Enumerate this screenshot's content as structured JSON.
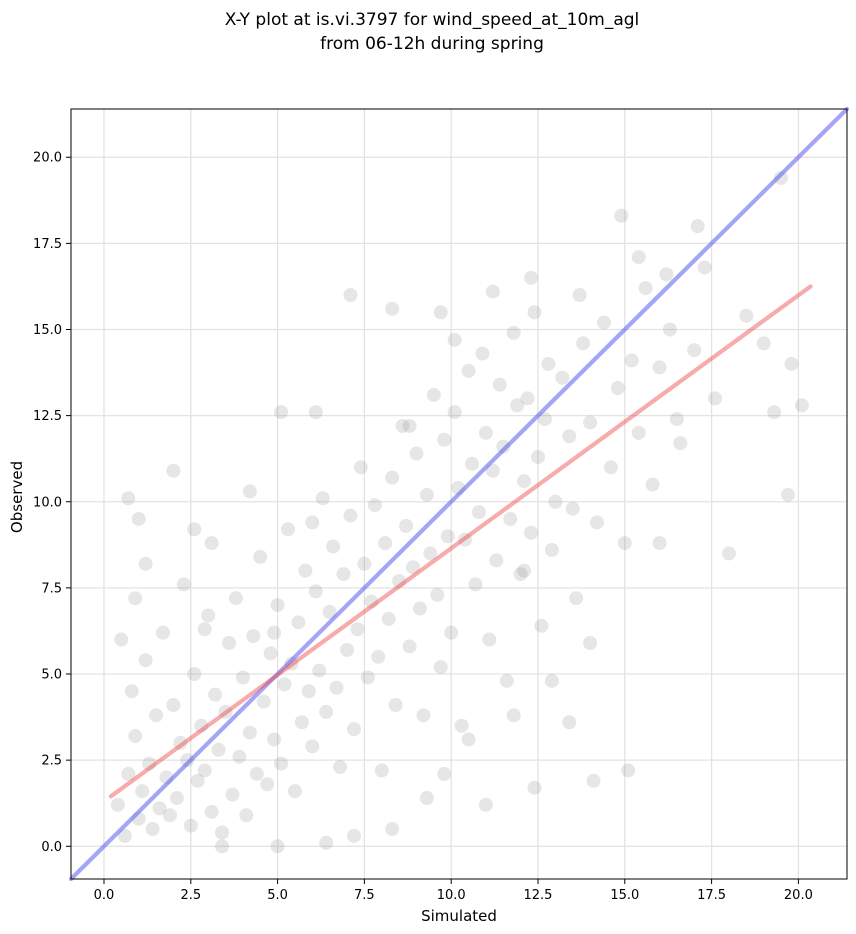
{
  "chart_data": {
    "type": "scatter",
    "title": "X-Y plot at is.vi.3797 for wind_speed_at_10m_agl",
    "subtitle": "from 06-12h during spring",
    "xlabel": "Simulated",
    "ylabel": "Observed",
    "xlim": [
      -0.95,
      21.4
    ],
    "ylim": [
      -0.95,
      21.4
    ],
    "xticks": [
      0.0,
      2.5,
      5.0,
      7.5,
      10.0,
      12.5,
      15.0,
      17.5,
      20.0
    ],
    "yticks": [
      0.0,
      2.5,
      5.0,
      7.5,
      10.0,
      12.5,
      15.0,
      17.5,
      20.0
    ],
    "xtick_labels": [
      "0.0",
      "2.5",
      "5.0",
      "7.5",
      "10.0",
      "12.5",
      "15.0",
      "17.5",
      "20.0"
    ],
    "ytick_labels": [
      "0.0",
      "2.5",
      "5.0",
      "7.5",
      "10.0",
      "12.5",
      "15.0",
      "17.5",
      "20.0"
    ],
    "grid": true,
    "point_color": "#808080",
    "point_alpha": 0.2,
    "points": [
      [
        0.4,
        1.2
      ],
      [
        0.6,
        0.3
      ],
      [
        0.7,
        2.1
      ],
      [
        0.8,
        4.5
      ],
      [
        0.9,
        3.2
      ],
      [
        1.0,
        0.8
      ],
      [
        1.1,
        1.6
      ],
      [
        1.2,
        5.4
      ],
      [
        1.3,
        2.4
      ],
      [
        1.4,
        0.5
      ],
      [
        1.5,
        3.8
      ],
      [
        1.6,
        1.1
      ],
      [
        1.7,
        6.2
      ],
      [
        1.8,
        2.0
      ],
      [
        1.9,
        0.9
      ],
      [
        2.0,
        4.1
      ],
      [
        2.1,
        1.4
      ],
      [
        2.2,
        3.0
      ],
      [
        2.3,
        7.6
      ],
      [
        2.4,
        2.5
      ],
      [
        2.5,
        0.6
      ],
      [
        2.6,
        5.0
      ],
      [
        2.7,
        1.9
      ],
      [
        2.8,
        3.5
      ],
      [
        2.9,
        2.2
      ],
      [
        3.0,
        6.7
      ],
      [
        3.1,
        1.0
      ],
      [
        3.2,
        4.4
      ],
      [
        3.3,
        2.8
      ],
      [
        3.4,
        0.4
      ],
      [
        3.5,
        3.9
      ],
      [
        3.6,
        5.9
      ],
      [
        3.7,
        1.5
      ],
      [
        3.8,
        7.2
      ],
      [
        3.9,
        2.6
      ],
      [
        4.0,
        4.9
      ],
      [
        4.1,
        0.9
      ],
      [
        4.2,
        3.3
      ],
      [
        4.3,
        6.1
      ],
      [
        4.4,
        2.1
      ],
      [
        4.5,
        8.4
      ],
      [
        4.6,
        4.2
      ],
      [
        4.7,
        1.8
      ],
      [
        4.8,
        5.6
      ],
      [
        4.9,
        3.1
      ],
      [
        5.0,
        7.0
      ],
      [
        5.1,
        2.4
      ],
      [
        5.2,
        4.7
      ],
      [
        5.3,
        9.2
      ],
      [
        5.4,
        5.3
      ],
      [
        5.5,
        1.6
      ],
      [
        5.6,
        6.5
      ],
      [
        5.7,
        3.6
      ],
      [
        5.8,
        8.0
      ],
      [
        5.9,
        4.5
      ],
      [
        6.0,
        2.9
      ],
      [
        6.1,
        7.4
      ],
      [
        6.2,
        5.1
      ],
      [
        6.3,
        10.1
      ],
      [
        6.4,
        3.9
      ],
      [
        6.5,
        6.8
      ],
      [
        6.6,
        8.7
      ],
      [
        6.7,
        4.6
      ],
      [
        6.8,
        2.3
      ],
      [
        6.9,
        7.9
      ],
      [
        7.0,
        5.7
      ],
      [
        7.1,
        9.6
      ],
      [
        7.2,
        3.4
      ],
      [
        7.3,
        6.3
      ],
      [
        7.4,
        11.0
      ],
      [
        7.5,
        8.2
      ],
      [
        7.6,
        4.9
      ],
      [
        7.7,
        7.1
      ],
      [
        7.8,
        9.9
      ],
      [
        7.9,
        5.5
      ],
      [
        8.0,
        2.2
      ],
      [
        8.1,
        8.8
      ],
      [
        8.2,
        6.6
      ],
      [
        8.3,
        10.7
      ],
      [
        8.4,
        4.1
      ],
      [
        8.5,
        7.7
      ],
      [
        8.6,
        12.2
      ],
      [
        8.7,
        9.3
      ],
      [
        8.8,
        5.8
      ],
      [
        8.9,
        8.1
      ],
      [
        9.0,
        11.4
      ],
      [
        9.1,
        6.9
      ],
      [
        9.2,
        3.8
      ],
      [
        9.3,
        10.2
      ],
      [
        9.4,
        8.5
      ],
      [
        9.5,
        13.1
      ],
      [
        9.6,
        7.3
      ],
      [
        9.7,
        5.2
      ],
      [
        9.8,
        11.8
      ],
      [
        9.9,
        9.0
      ],
      [
        10.0,
        6.2
      ],
      [
        10.1,
        12.6
      ],
      [
        10.2,
        10.4
      ],
      [
        10.3,
        3.5
      ],
      [
        10.4,
        8.9
      ],
      [
        10.5,
        13.8
      ],
      [
        10.6,
        11.1
      ],
      [
        10.7,
        7.6
      ],
      [
        10.8,
        9.7
      ],
      [
        10.9,
        14.3
      ],
      [
        11.0,
        12.0
      ],
      [
        11.1,
        6.0
      ],
      [
        11.2,
        10.9
      ],
      [
        11.3,
        8.3
      ],
      [
        11.4,
        13.4
      ],
      [
        11.5,
        11.6
      ],
      [
        11.6,
        4.8
      ],
      [
        11.7,
        9.5
      ],
      [
        11.8,
        14.9
      ],
      [
        11.9,
        12.8
      ],
      [
        12.0,
        7.9
      ],
      [
        12.1,
        10.6
      ],
      [
        12.2,
        13.0
      ],
      [
        12.3,
        9.1
      ],
      [
        12.4,
        15.5
      ],
      [
        12.5,
        11.3
      ],
      [
        12.6,
        6.4
      ],
      [
        12.7,
        12.4
      ],
      [
        12.8,
        14.0
      ],
      [
        12.9,
        8.6
      ],
      [
        13.0,
        10.0
      ],
      [
        13.2,
        13.6
      ],
      [
        13.4,
        11.9
      ],
      [
        13.6,
        7.2
      ],
      [
        13.8,
        14.6
      ],
      [
        14.0,
        12.3
      ],
      [
        14.2,
        9.4
      ],
      [
        14.4,
        15.2
      ],
      [
        14.6,
        11.0
      ],
      [
        14.8,
        13.3
      ],
      [
        15.0,
        8.8
      ],
      [
        15.2,
        14.1
      ],
      [
        15.4,
        12.0
      ],
      [
        15.6,
        16.2
      ],
      [
        15.8,
        10.5
      ],
      [
        16.0,
        13.9
      ],
      [
        16.3,
        15.0
      ],
      [
        16.6,
        11.7
      ],
      [
        17.0,
        14.4
      ],
      [
        17.3,
        16.8
      ],
      [
        17.6,
        13.0
      ],
      [
        18.0,
        8.5
      ],
      [
        18.5,
        15.4
      ],
      [
        19.0,
        14.6
      ],
      [
        19.5,
        19.4
      ],
      [
        19.7,
        10.2
      ],
      [
        20.1,
        12.8
      ],
      [
        1.2,
        8.2
      ],
      [
        2.0,
        10.9
      ],
      [
        0.7,
        10.1
      ],
      [
        5.1,
        12.6
      ],
      [
        6.1,
        12.6
      ],
      [
        7.1,
        16.0
      ],
      [
        8.3,
        15.6
      ],
      [
        11.2,
        16.1
      ],
      [
        12.3,
        16.5
      ],
      [
        14.9,
        18.3
      ],
      [
        17.1,
        18.0
      ],
      [
        15.1,
        2.2
      ],
      [
        14.1,
        1.9
      ],
      [
        12.4,
        1.7
      ],
      [
        11.0,
        1.2
      ],
      [
        13.4,
        3.6
      ],
      [
        10.5,
        3.1
      ],
      [
        9.8,
        2.1
      ],
      [
        8.3,
        0.5
      ],
      [
        7.2,
        0.3
      ],
      [
        6.4,
        0.1
      ],
      [
        5.0,
        0.0
      ],
      [
        3.4,
        0.0
      ],
      [
        16.0,
        8.8
      ],
      [
        16.5,
        12.4
      ],
      [
        19.3,
        12.6
      ],
      [
        19.8,
        14.0
      ],
      [
        14.0,
        5.9
      ],
      [
        12.9,
        4.8
      ],
      [
        11.8,
        3.8
      ],
      [
        9.3,
        1.4
      ],
      [
        4.2,
        10.3
      ],
      [
        3.1,
        8.8
      ],
      [
        2.6,
        9.2
      ],
      [
        1.0,
        9.5
      ],
      [
        2.9,
        6.3
      ],
      [
        0.5,
        6.0
      ],
      [
        0.9,
        7.2
      ],
      [
        4.9,
        6.2
      ],
      [
        6.0,
        9.4
      ],
      [
        8.8,
        12.2
      ],
      [
        10.1,
        14.7
      ],
      [
        13.7,
        16.0
      ],
      [
        15.4,
        17.1
      ],
      [
        16.2,
        16.6
      ],
      [
        9.7,
        15.5
      ],
      [
        12.1,
        8.0
      ],
      [
        13.5,
        9.8
      ]
    ],
    "series": [
      {
        "type": "line",
        "color": "#4b4bf0",
        "alpha": 0.5,
        "points": [
          [
            -0.95,
            -0.95
          ],
          [
            21.4,
            21.4
          ]
        ]
      },
      {
        "type": "line",
        "color": "#ee4444",
        "alpha": 0.45,
        "points": [
          [
            0.2,
            1.45
          ],
          [
            20.35,
            16.25
          ]
        ]
      }
    ]
  }
}
